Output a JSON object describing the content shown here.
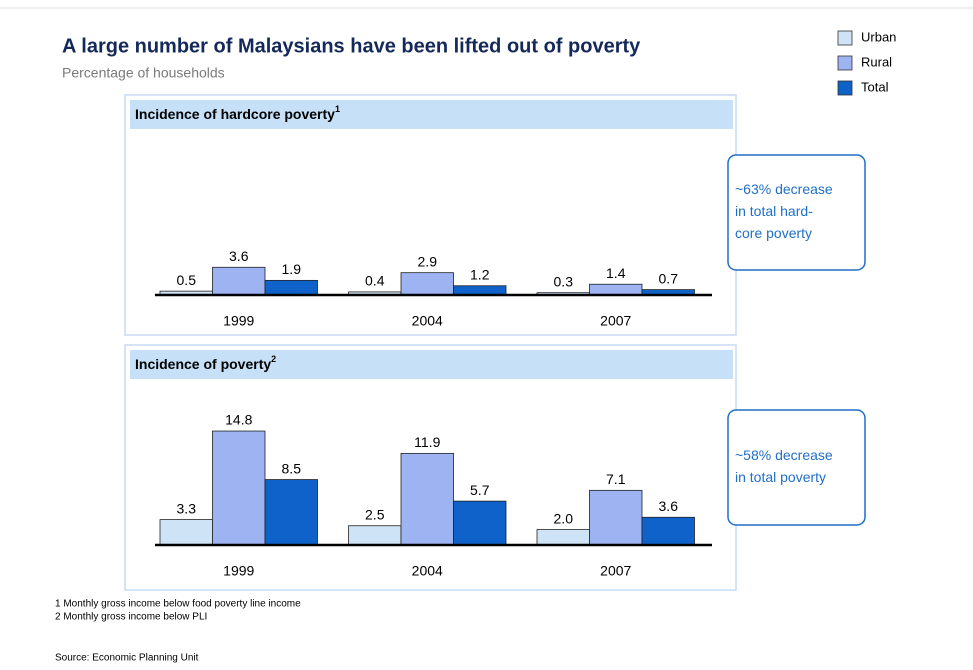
{
  "title": "A large number of Malaysians have been lifted out of poverty",
  "subtitle": "Percentage of households",
  "chart_data": [
    {
      "type": "bar",
      "title": "Incidence of hardcore poverty",
      "footnote_ref": "1",
      "categories": [
        "1999",
        "2004",
        "2007"
      ],
      "series": [
        {
          "name": "Urban",
          "color": "#cfe3f7",
          "values": [
            0.5,
            0.4,
            0.3
          ]
        },
        {
          "name": "Rural",
          "color": "#9db3f2",
          "values": [
            3.6,
            2.9,
            1.4
          ]
        },
        {
          "name": "Total",
          "color": "#0e62c9",
          "values": [
            1.9,
            1.2,
            0.7
          ]
        }
      ],
      "annotation": [
        "~63% decrease",
        "in total hard-",
        "core poverty"
      ]
    },
    {
      "type": "bar",
      "title": "Incidence of poverty",
      "footnote_ref": "2",
      "categories": [
        "1999",
        "2004",
        "2007"
      ],
      "series": [
        {
          "color": "#cfe3f7",
          "values": [
            3.3,
            2.5,
            2
          ],
          "value_labels": [
            "3.3",
            "2.5",
            "2.0"
          ]
        },
        {
          "color": "#9db3f2",
          "values": [
            14.8,
            11.9,
            7.1
          ]
        },
        {
          "color": "#0e62c9",
          "values": [
            8.5,
            5.7,
            3.6
          ]
        }
      ],
      "annotation": [
        "~58% decrease",
        "in total poverty"
      ]
    }
  ],
  "footnotes": [
    "1 Monthly gross income below food poverty line income",
    "2 Monthly gross income below PLI"
  ],
  "source": "Source: Economic Planning Unit"
}
